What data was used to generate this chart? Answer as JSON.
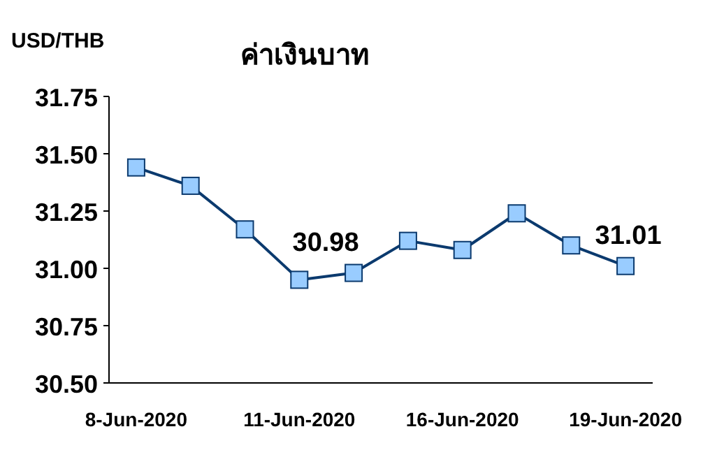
{
  "chart_data": {
    "type": "line",
    "title": "ค่าเงินบาท",
    "ylabel": "USD/THB",
    "categories": [
      "8-Jun-2020",
      null,
      null,
      "11-Jun-2020",
      null,
      null,
      "16-Jun-2020",
      null,
      null,
      "19-Jun-2020"
    ],
    "series": [
      {
        "color": "#0b3a6e",
        "values": [
          31.44,
          31.36,
          31.17,
          30.95,
          30.98,
          31.12,
          31.08,
          31.24,
          31.1,
          31.01
        ],
        "value_labels": [
          null,
          null,
          null,
          null,
          "30.98",
          null,
          null,
          null,
          null,
          "31.01"
        ]
      }
    ],
    "ylim": [
      30.5,
      31.75
    ],
    "yticks": [
      {
        "value": 30.5,
        "label": "30.50"
      },
      {
        "value": 30.75,
        "label": "30.75"
      },
      {
        "value": 31.0,
        "label": "31.00"
      },
      {
        "value": 31.25,
        "label": "31.25"
      },
      {
        "value": 31.5,
        "label": "31.50"
      },
      {
        "value": 31.75,
        "label": "31.75"
      }
    ],
    "marker": "square",
    "grid": false
  }
}
